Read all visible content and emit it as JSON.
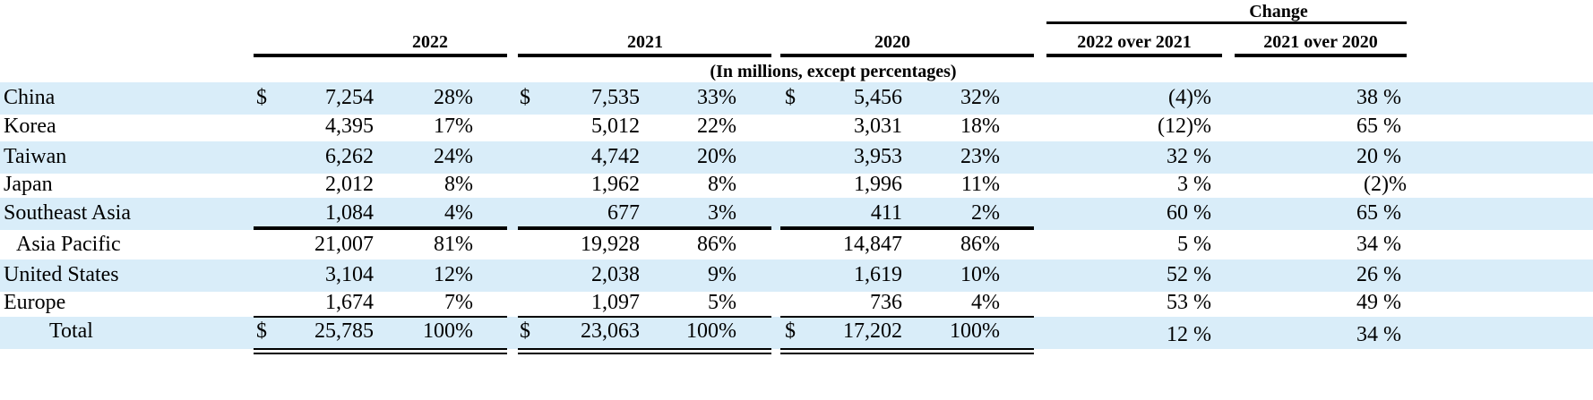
{
  "header": {
    "change_label": "Change",
    "columns": [
      "2022",
      "2021",
      "2020",
      "2022 over 2021",
      "2021 over 2020"
    ],
    "units_note": "(In millions, except percentages)"
  },
  "currency_symbol": "$",
  "rows": [
    {
      "label": "China",
      "v2022": "7,254",
      "p2022": "28%",
      "v2021": "7,535",
      "p2021": "33%",
      "v2020": "5,456",
      "p2020": "32%",
      "c2221": "(4)%",
      "c2120": "38 %",
      "shaded": true,
      "dollar": true
    },
    {
      "label": "Korea",
      "v2022": "4,395",
      "p2022": "17%",
      "v2021": "5,012",
      "p2021": "22%",
      "v2020": "3,031",
      "p2020": "18%",
      "c2221": "(12)%",
      "c2120": "65 %",
      "shaded": false,
      "dollar": false
    },
    {
      "label": "Taiwan",
      "v2022": "6,262",
      "p2022": "24%",
      "v2021": "4,742",
      "p2021": "20%",
      "v2020": "3,953",
      "p2020": "23%",
      "c2221": "32 %",
      "c2120": "20 %",
      "shaded": true,
      "dollar": false
    },
    {
      "label": "Japan",
      "v2022": "2,012",
      "p2022": "8%",
      "v2021": "1,962",
      "p2021": "8%",
      "v2020": "1,996",
      "p2020": "11%",
      "c2221": "3 %",
      "c2120": "(2)%",
      "shaded": false,
      "dollar": false
    },
    {
      "label": "Southeast Asia",
      "v2022": "1,084",
      "p2022": "4%",
      "v2021": "677",
      "p2021": "3%",
      "v2020": "411",
      "p2020": "2%",
      "c2221": "60 %",
      "c2120": "65 %",
      "shaded": true,
      "dollar": false
    },
    {
      "label": "Asia Pacific",
      "v2022": "21,007",
      "p2022": "81%",
      "v2021": "19,928",
      "p2021": "86%",
      "v2020": "14,847",
      "p2020": "86%",
      "c2221": "5 %",
      "c2120": "34 %",
      "shaded": false,
      "dollar": false
    },
    {
      "label": "United States",
      "v2022": "3,104",
      "p2022": "12%",
      "v2021": "2,038",
      "p2021": "9%",
      "v2020": "1,619",
      "p2020": "10%",
      "c2221": "52 %",
      "c2120": "26 %",
      "shaded": true,
      "dollar": false
    },
    {
      "label": "Europe",
      "v2022": "1,674",
      "p2022": "7%",
      "v2021": "1,097",
      "p2021": "5%",
      "v2020": "736",
      "p2020": "4%",
      "c2221": "53 %",
      "c2120": "49 %",
      "shaded": false,
      "dollar": false
    },
    {
      "label": "Total",
      "v2022": "25,785",
      "p2022": "100%",
      "v2021": "23,063",
      "p2021": "100%",
      "v2020": "17,202",
      "p2020": "100%",
      "c2221": "12 %",
      "c2120": "34 %",
      "shaded": true,
      "dollar": true
    }
  ],
  "colors": {
    "band": "#d9edf9",
    "text": "#000000"
  }
}
